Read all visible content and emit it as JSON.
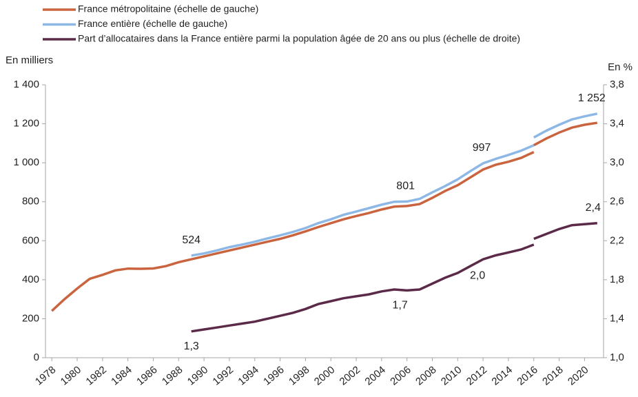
{
  "chart_data": {
    "type": "line",
    "y_label": "En milliers",
    "y2_label": "En %",
    "xlim": [
      1977.5,
      2021.5
    ],
    "xticks": [
      1978,
      1980,
      1982,
      1984,
      1986,
      1988,
      1990,
      1992,
      1994,
      1996,
      1998,
      2000,
      2002,
      2004,
      2006,
      2008,
      2010,
      2012,
      2014,
      2016,
      2018,
      2020
    ],
    "ylim": [
      0,
      1400
    ],
    "yticks": [
      0,
      200,
      400,
      600,
      800,
      {
        "value": 1000,
        "label": "1 000"
      },
      {
        "value": 1200,
        "label": "1 200"
      },
      {
        "value": 1400,
        "label": "1 400"
      }
    ],
    "y2lim": [
      1.0,
      3.8
    ],
    "y2ticks": [
      {
        "value": 1.0,
        "label": "1,0"
      },
      {
        "value": 1.4,
        "label": "1,4"
      },
      {
        "value": 1.8,
        "label": "1,8"
      },
      {
        "value": 2.2,
        "label": "2,2"
      },
      {
        "value": 2.6,
        "label": "2,6"
      },
      {
        "value": 3.0,
        "label": "3,0"
      },
      {
        "value": 3.4,
        "label": "3,4"
      },
      {
        "value": 3.8,
        "label": "3,8"
      }
    ],
    "series": [
      {
        "name": "France métropolitaine (échelle de gauche)",
        "color": "#c9643f",
        "axis": "y",
        "x": [
          1978,
          1979,
          1980,
          1981,
          1982,
          1983,
          1984,
          1985,
          1986,
          1987,
          1988,
          1989,
          1990,
          1991,
          1992,
          1993,
          1994,
          1995,
          1996,
          1997,
          1998,
          1999,
          2000,
          2001,
          2002,
          2003,
          2004,
          2005,
          2006,
          2007,
          2008,
          2009,
          2010,
          2011,
          2012,
          2013,
          2014,
          2015,
          2016,
          null,
          2016,
          2017,
          2018,
          2019,
          2020,
          2021
        ],
        "values": [
          240,
          300,
          355,
          405,
          425,
          448,
          457,
          456,
          458,
          470,
          490,
          505,
          520,
          535,
          550,
          565,
          580,
          595,
          610,
          628,
          648,
          670,
          690,
          710,
          727,
          742,
          760,
          775,
          778,
          788,
          820,
          855,
          885,
          925,
          965,
          990,
          1005,
          1025,
          1055,
          null,
          1090,
          1125,
          1155,
          1180,
          1195,
          1205
        ]
      },
      {
        "name": "France entière (échelle de gauche)",
        "color": "#8db8e6",
        "axis": "y",
        "x": [
          1989,
          1990,
          1991,
          1992,
          1993,
          1994,
          1995,
          1996,
          1997,
          1998,
          1999,
          2000,
          2001,
          2002,
          2003,
          2004,
          2005,
          2006,
          2007,
          2008,
          2009,
          2010,
          2011,
          2012,
          2013,
          2014,
          2015,
          2016,
          null,
          2016,
          2017,
          2018,
          2019,
          2020,
          2021
        ],
        "values": [
          524,
          535,
          550,
          567,
          580,
          595,
          612,
          628,
          645,
          665,
          690,
          710,
          733,
          750,
          767,
          785,
          800,
          801,
          815,
          848,
          880,
          915,
          957,
          997,
          1020,
          1040,
          1062,
          1090,
          null,
          1130,
          1165,
          1195,
          1222,
          1238,
          1252
        ]
      },
      {
        "name": "Part d’allocataires dans la France entière parmi la population âgée de 20 ans ou plus (échelle de droite)",
        "color": "#5a2a48",
        "axis": "y2",
        "x": [
          1989,
          1990,
          1991,
          1992,
          1993,
          1994,
          1995,
          1996,
          1997,
          1998,
          1999,
          2000,
          2001,
          2002,
          2003,
          2004,
          2005,
          2006,
          2007,
          2008,
          2009,
          2010,
          2011,
          2012,
          2013,
          2014,
          2015,
          2016,
          null,
          2016,
          2017,
          2018,
          2019,
          2020,
          2021
        ],
        "values": [
          1.27,
          1.29,
          1.31,
          1.33,
          1.35,
          1.37,
          1.4,
          1.43,
          1.46,
          1.5,
          1.55,
          1.58,
          1.61,
          1.63,
          1.65,
          1.68,
          1.7,
          1.69,
          1.7,
          1.76,
          1.82,
          1.87,
          1.94,
          2.01,
          2.05,
          2.08,
          2.11,
          2.16,
          null,
          2.22,
          2.27,
          2.32,
          2.36,
          2.37,
          2.38
        ]
      }
    ],
    "annotations": [
      {
        "text": "524",
        "x": 1989,
        "y": 524,
        "axis": "y"
      },
      {
        "text": "801",
        "x": 2006,
        "y": 801,
        "axis": "y"
      },
      {
        "text": "997",
        "x": 2012,
        "y": 997,
        "axis": "y"
      },
      {
        "text": "1 252",
        "x": 2021,
        "y": 1252,
        "axis": "y"
      },
      {
        "text": "1,3",
        "x": 1989,
        "y": 1.27,
        "axis": "y2"
      },
      {
        "text": "1,7",
        "x": 2006,
        "y": 1.69,
        "axis": "y2"
      },
      {
        "text": "2,0",
        "x": 2012,
        "y": 2.01,
        "axis": "y2"
      },
      {
        "text": "2,4",
        "x": 2021,
        "y": 2.38,
        "axis": "y2"
      }
    ]
  }
}
